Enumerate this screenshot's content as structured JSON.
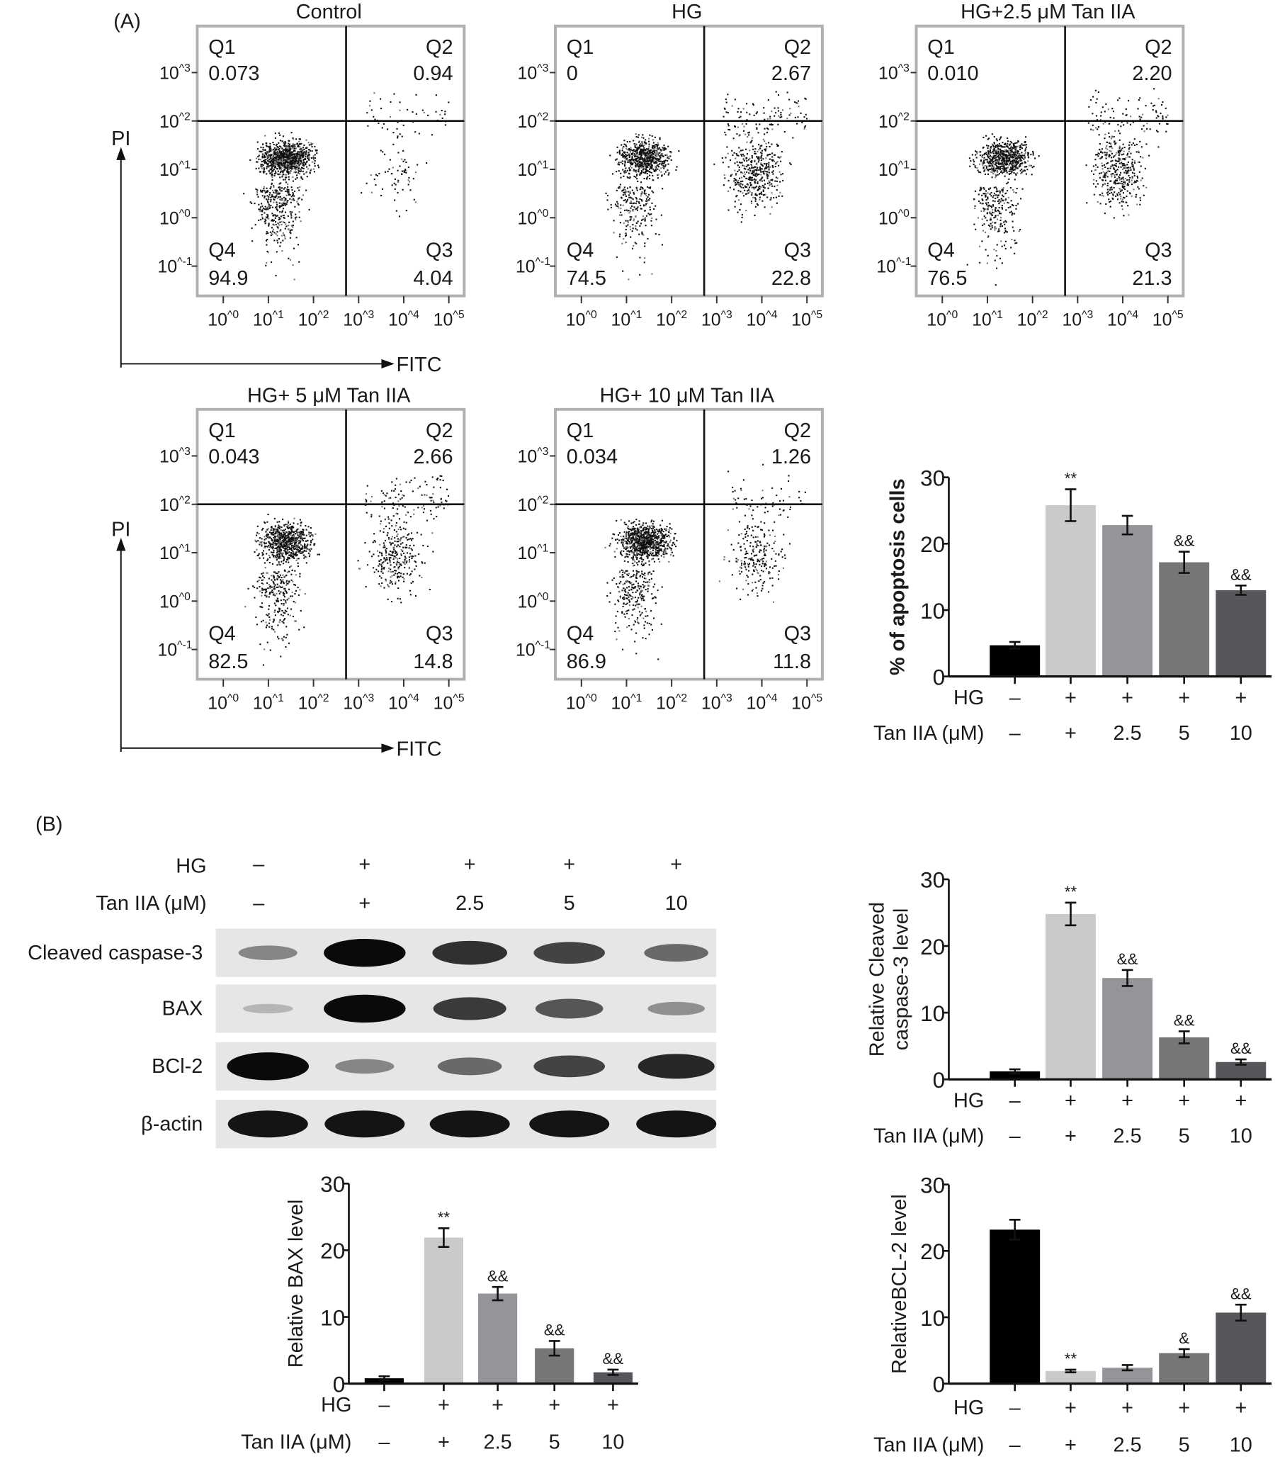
{
  "panel_labels": {
    "a": "(A)",
    "b": "(B)"
  },
  "flow": {
    "x_axis_label": "FITC",
    "y_axis_label": "PI",
    "x_ticks": [
      "10^0",
      "10^1",
      "10^2",
      "10^3",
      "10^4",
      "10^5"
    ],
    "y_ticks": [
      "10^3",
      "10^2",
      "10^1",
      "10^0",
      "10^-1"
    ],
    "quadrant_names": [
      "Q1",
      "Q2",
      "Q3",
      "Q4"
    ],
    "panels": [
      {
        "title": "Control",
        "q1": "0.073",
        "q2": "0.94",
        "q3": "4.04",
        "q4": "94.9"
      },
      {
        "title": "HG",
        "q1": "0",
        "q2": "2.67",
        "q3": "22.8",
        "q4": "74.5"
      },
      {
        "title": "HG+2.5 μM Tan IIA",
        "q1": "0.010",
        "q2": "2.20",
        "q3": "21.3",
        "q4": "76.5"
      },
      {
        "title": "HG+ 5 μM Tan IIA",
        "q1": "0.043",
        "q2": "2.66",
        "q3": "14.8",
        "q4": "82.5"
      },
      {
        "title": "HG+ 10 μM Tan IIA",
        "q1": "0.034",
        "q2": "1.26",
        "q3": "11.8",
        "q4": "86.9"
      }
    ]
  },
  "treatments": {
    "hg_label": "HG",
    "tan_label": "Tan IIA (μM)",
    "hg": [
      "–",
      "+",
      "+",
      "+",
      "+"
    ],
    "tan": [
      "–",
      "+",
      "2.5",
      "5",
      "10"
    ]
  },
  "western_blot": {
    "rows": [
      {
        "label": "Cleaved caspase-3",
        "intensity": [
          0.35,
          1.0,
          0.8,
          0.7,
          0.5
        ]
      },
      {
        "label": "BAX",
        "intensity": [
          0.1,
          1.0,
          0.75,
          0.6,
          0.3
        ]
      },
      {
        "label": "BCl-2",
        "intensity": [
          1.0,
          0.35,
          0.5,
          0.7,
          0.85
        ]
      },
      {
        "label": "β-actin",
        "intensity": [
          0.95,
          0.95,
          0.95,
          0.95,
          0.95
        ]
      }
    ]
  },
  "colors": {
    "bars": [
      "#000000",
      "#c9cbcb",
      "#939598",
      "#747678",
      "#55575a"
    ]
  },
  "chart_data": [
    {
      "type": "bar",
      "id": "apoptosis",
      "title": "",
      "ylabel": "% of apoptosis cells",
      "ylim": [
        0,
        30
      ],
      "yticks": [
        "0",
        "10",
        "20",
        "30"
      ],
      "categories": [
        "HG– / Tan IIA–",
        "HG+ / Tan IIA+",
        "HG+ / 2.5",
        "HG+ / 5",
        "HG+ / 10"
      ],
      "values": [
        4.7,
        25.8,
        22.8,
        17.2,
        13.0
      ],
      "errors": [
        0.5,
        2.4,
        1.4,
        1.6,
        0.7
      ],
      "annotations": [
        "",
        "**",
        "",
        "&&",
        "&&"
      ]
    },
    {
      "type": "bar",
      "id": "caspase3",
      "title": "",
      "ylabel": "Relative Cleaved caspase-3 level",
      "ylim": [
        0,
        30
      ],
      "yticks": [
        "0",
        "10",
        "20",
        "30"
      ],
      "categories": [
        "HG– / Tan IIA–",
        "HG+ / Tan IIA+",
        "HG+ / 2.5",
        "HG+ / 5",
        "HG+ / 10"
      ],
      "values": [
        1.2,
        24.8,
        15.2,
        6.3,
        2.6
      ],
      "errors": [
        0.3,
        1.7,
        1.2,
        0.9,
        0.4
      ],
      "annotations": [
        "",
        "**",
        "&&",
        "&&",
        "&&"
      ]
    },
    {
      "type": "bar",
      "id": "bax",
      "title": "",
      "ylabel": "Relative BAX level",
      "ylim": [
        0,
        30
      ],
      "yticks": [
        "0",
        "10",
        "20",
        "30"
      ],
      "categories": [
        "HG– / Tan IIA–",
        "HG+ / Tan IIA+",
        "HG+ / 2.5",
        "HG+ / 5",
        "HG+ / 10"
      ],
      "values": [
        0.8,
        21.9,
        13.5,
        5.3,
        1.7
      ],
      "errors": [
        0.3,
        1.4,
        1.0,
        1.1,
        0.4
      ],
      "annotations": [
        "",
        "**",
        "&&",
        "&&",
        "&&"
      ]
    },
    {
      "type": "bar",
      "id": "bcl2",
      "title": "",
      "ylabel": "RelativeBCL-2 level",
      "ylim": [
        0,
        30
      ],
      "yticks": [
        "0",
        "10",
        "20",
        "30"
      ],
      "categories": [
        "HG– / Tan IIA–",
        "HG+ / Tan IIA+",
        "HG+ / 2.5",
        "HG+ / 5",
        "HG+ / 10"
      ],
      "values": [
        23.2,
        1.9,
        2.4,
        4.6,
        10.7
      ],
      "errors": [
        1.5,
        0.2,
        0.4,
        0.6,
        1.2
      ],
      "annotations": [
        "",
        "**",
        "",
        "&",
        "&&"
      ]
    }
  ]
}
